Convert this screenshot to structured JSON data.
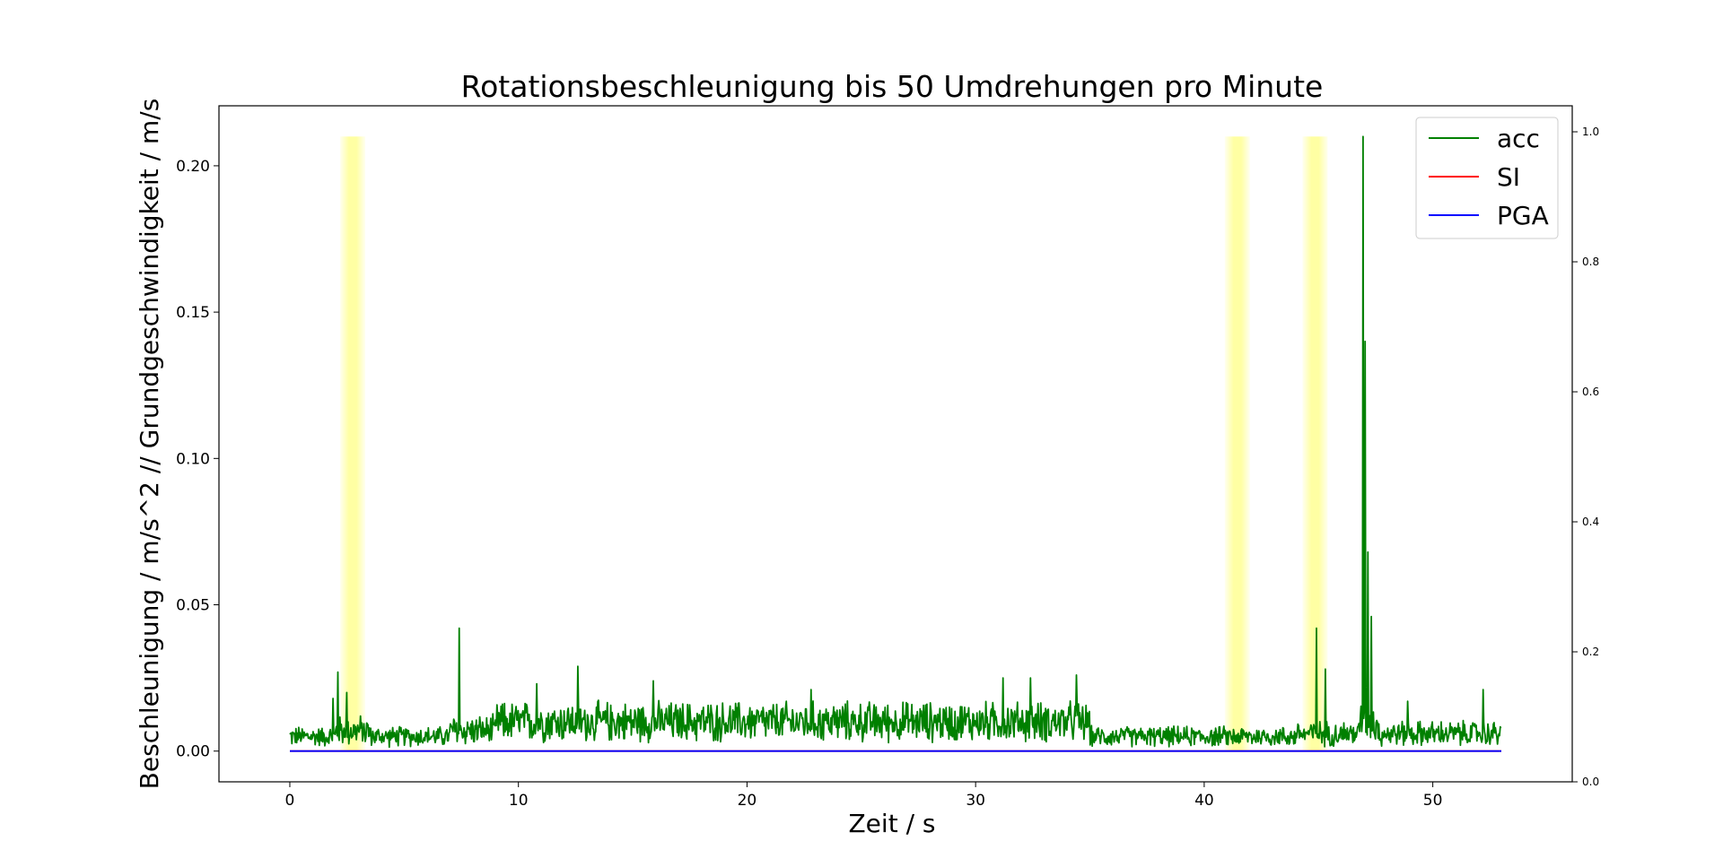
{
  "chart_data": {
    "type": "line",
    "title": "Rotationsbeschleunigung bis 50 Umdrehungen pro Minute",
    "xlabel": "Zeit / s",
    "ylabel": "Beschleunigung / m/s^2 // Grundgeschwindigkeit / m/s",
    "xlim": [
      -3.1,
      56.1
    ],
    "ylim": [
      -0.0105,
      0.2205
    ],
    "y2lim": [
      0.0,
      1.04
    ],
    "x_ticks": [
      0,
      10,
      20,
      30,
      40,
      50
    ],
    "y_ticks": [
      0.0,
      0.05,
      0.1,
      0.15,
      0.2
    ],
    "y2_ticks": [
      0.0,
      0.2,
      0.4,
      0.6,
      0.8,
      1.0
    ],
    "x_tick_labels": [
      "0",
      "10",
      "20",
      "30",
      "40",
      "50"
    ],
    "y_tick_labels": [
      "0.00",
      "0.05",
      "0.10",
      "0.15",
      "0.20"
    ],
    "y2_tick_labels": [
      "0.0",
      "0.2",
      "0.4",
      "0.6",
      "0.8",
      "1.0"
    ],
    "grid": false,
    "legend_position": "top-right",
    "highlight_bands": [
      {
        "x_start": 2.2,
        "x_end": 3.3,
        "color": "#ffff99"
      },
      {
        "x_start": 40.9,
        "x_end": 42.0,
        "color": "#ffff99"
      },
      {
        "x_start": 44.3,
        "x_end": 45.4,
        "color": "#ffff99"
      }
    ],
    "series": [
      {
        "name": "acc",
        "color": "#008000",
        "segments": [
          {
            "x_start": 0.0,
            "x_end": 2.0,
            "base": 0.005,
            "amp": 0.004
          },
          {
            "x_start": 2.0,
            "x_end": 3.5,
            "base": 0.007,
            "amp": 0.006
          },
          {
            "x_start": 3.5,
            "x_end": 7.0,
            "base": 0.005,
            "amp": 0.004
          },
          {
            "x_start": 7.0,
            "x_end": 9.0,
            "base": 0.007,
            "amp": 0.006
          },
          {
            "x_start": 9.0,
            "x_end": 35.0,
            "base": 0.01,
            "amp": 0.008
          },
          {
            "x_start": 35.0,
            "x_end": 44.0,
            "base": 0.005,
            "amp": 0.004
          },
          {
            "x_start": 44.0,
            "x_end": 46.8,
            "base": 0.006,
            "amp": 0.005
          },
          {
            "x_start": 46.8,
            "x_end": 47.6,
            "base": 0.01,
            "amp": 0.008
          },
          {
            "x_start": 47.6,
            "x_end": 53.0,
            "base": 0.006,
            "amp": 0.005
          }
        ],
        "peaks": [
          {
            "x": 1.9,
            "y": 0.018
          },
          {
            "x": 2.1,
            "y": 0.027
          },
          {
            "x": 2.5,
            "y": 0.02
          },
          {
            "x": 7.4,
            "y": 0.042
          },
          {
            "x": 10.8,
            "y": 0.023
          },
          {
            "x": 12.6,
            "y": 0.029
          },
          {
            "x": 15.9,
            "y": 0.024
          },
          {
            "x": 22.8,
            "y": 0.021
          },
          {
            "x": 31.2,
            "y": 0.025
          },
          {
            "x": 32.4,
            "y": 0.025
          },
          {
            "x": 34.4,
            "y": 0.026
          },
          {
            "x": 44.9,
            "y": 0.042
          },
          {
            "x": 45.3,
            "y": 0.028
          },
          {
            "x": 46.95,
            "y": 0.21
          },
          {
            "x": 47.05,
            "y": 0.14
          },
          {
            "x": 47.15,
            "y": 0.068
          },
          {
            "x": 47.3,
            "y": 0.046
          },
          {
            "x": 48.9,
            "y": 0.017
          },
          {
            "x": 52.2,
            "y": 0.021
          }
        ]
      },
      {
        "name": "SI",
        "color": "#ff0000",
        "x": [
          0.0,
          53.0
        ],
        "y": [
          0.0,
          0.0
        ]
      },
      {
        "name": "PGA",
        "color": "#0000ff",
        "x": [
          0.0,
          53.0
        ],
        "y": [
          0.0,
          0.0
        ]
      }
    ]
  }
}
